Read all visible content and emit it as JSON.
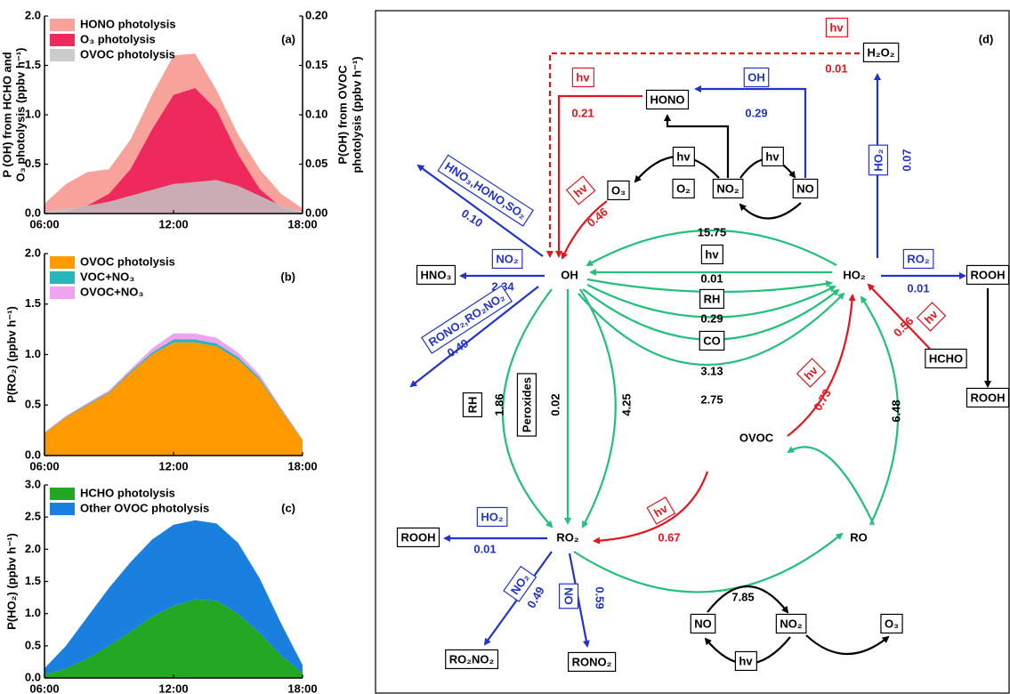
{
  "chart_data": [
    {
      "type": "area",
      "panel_label": "(a)",
      "stacked": false,
      "ylabel": [
        "P (OH) from HCHO and",
        "O₃ photolysis (ppbv h⁻¹)"
      ],
      "y2label": [
        "P(OH) from OVOC",
        "photolysis (ppbv h⁻¹)"
      ],
      "x": [
        6,
        7,
        8,
        9,
        10,
        11,
        12,
        13,
        14,
        15,
        16,
        17,
        18
      ],
      "xlim": [
        6,
        18
      ],
      "xticks": [
        {
          "value": 6,
          "label": "06:00"
        },
        {
          "value": 12,
          "label": "12:00"
        },
        {
          "value": 18,
          "label": "18:00"
        }
      ],
      "ylim": [
        0,
        2
      ],
      "yticks": [
        {
          "value": 0,
          "label": "0.0"
        },
        0.5,
        {
          "value": 1,
          "label": "1.0"
        },
        1.5,
        {
          "value": 2,
          "label": "2.0"
        }
      ],
      "y2lim": [
        0,
        0.2
      ],
      "y2ticks": [
        {
          "value": 0,
          "label": "0.00"
        },
        0.05,
        {
          "value": 0.1,
          "label": "0.10"
        },
        0.15,
        {
          "value": 0.2,
          "label": "0.20"
        }
      ],
      "series": [
        {
          "name": "HONO photolysis",
          "color": "#f7a39c",
          "values": [
            0.1,
            0.3,
            0.42,
            0.45,
            0.75,
            1.2,
            1.6,
            1.62,
            1.25,
            0.8,
            0.45,
            0.2,
            0.05
          ]
        },
        {
          "name": "O₃ photolysis",
          "color": "#ee2a5c",
          "values": [
            0,
            0.02,
            0.08,
            0.2,
            0.45,
            0.85,
            1.2,
            1.27,
            1.05,
            0.6,
            0.25,
            0.06,
            0
          ]
        },
        {
          "name": "OVOC photolysis",
          "color": "rgba(195,195,195,0.85)",
          "axis": "y2",
          "values": [
            0.002,
            0.005,
            0.008,
            0.012,
            0.018,
            0.024,
            0.03,
            0.032,
            0.034,
            0.028,
            0.018,
            0.008,
            0.002
          ]
        }
      ]
    },
    {
      "type": "area",
      "panel_label": "(b)",
      "stacked": true,
      "ylabel": [
        "P(RO₂) (ppbv h⁻¹)"
      ],
      "x": [
        6,
        7,
        8,
        9,
        10,
        11,
        12,
        13,
        14,
        15,
        16,
        17,
        18
      ],
      "xlim": [
        6,
        18
      ],
      "xticks": [
        {
          "value": 6,
          "label": "06:00"
        },
        {
          "value": 12,
          "label": "12:00"
        },
        {
          "value": 18,
          "label": "18:00"
        }
      ],
      "ylim": [
        0,
        2
      ],
      "yticks": [
        {
          "value": 0,
          "label": "0.0"
        },
        0.5,
        {
          "value": 1,
          "label": "1.0"
        },
        1.5,
        {
          "value": 2,
          "label": "2.0"
        }
      ],
      "series": [
        {
          "name": "OVOC photolysis",
          "color": "#ff9900",
          "values": [
            0.22,
            0.38,
            0.5,
            0.62,
            0.82,
            1.0,
            1.12,
            1.12,
            1.08,
            0.95,
            0.75,
            0.45,
            0.15
          ]
        },
        {
          "name": "VOC+NO₃",
          "color": "#2ab5b8",
          "values": [
            0.005,
            0.005,
            0.01,
            0.01,
            0.015,
            0.02,
            0.03,
            0.03,
            0.03,
            0.025,
            0.02,
            0.01,
            0.005
          ]
        },
        {
          "name": "OVOC+NO₃",
          "color": "#efa4ef",
          "values": [
            0.005,
            0.01,
            0.01,
            0.015,
            0.02,
            0.04,
            0.06,
            0.06,
            0.055,
            0.045,
            0.03,
            0.015,
            0.005
          ]
        }
      ]
    },
    {
      "type": "area",
      "panel_label": "(c)",
      "stacked": true,
      "ylabel": [
        "P(HO₂) (ppbv h⁻¹)"
      ],
      "x": [
        6,
        7,
        8,
        9,
        10,
        11,
        12,
        13,
        14,
        15,
        16,
        17,
        18
      ],
      "xlim": [
        6,
        18
      ],
      "xticks": [
        {
          "value": 6,
          "label": "06:00"
        },
        {
          "value": 12,
          "label": "12:00"
        },
        {
          "value": 18,
          "label": "18:00"
        }
      ],
      "ylim": [
        0,
        3
      ],
      "yticks": [
        {
          "value": 0,
          "label": "0.0"
        },
        0.5,
        {
          "value": 1,
          "label": "1.0"
        },
        1.5,
        {
          "value": 2,
          "label": "2.0"
        },
        2.5,
        {
          "value": 3,
          "label": "3.0"
        }
      ],
      "series": [
        {
          "name": "HCHO photolysis",
          "color": "#22a822",
          "values": [
            0.05,
            0.15,
            0.3,
            0.5,
            0.72,
            0.95,
            1.12,
            1.22,
            1.2,
            1.0,
            0.7,
            0.35,
            0.08
          ]
        },
        {
          "name": "Other OVOC photolysis",
          "color": "#1a80e0",
          "values": [
            0.1,
            0.35,
            0.65,
            0.9,
            1.08,
            1.2,
            1.26,
            1.23,
            1.2,
            1.1,
            0.85,
            0.5,
            0.12
          ]
        }
      ]
    }
  ],
  "diagram": {
    "panel_label": "(d)",
    "nodes": [
      "H₂O₂",
      "HONO",
      "O₃",
      "NO₂",
      "NO",
      "HNO₃",
      "OH",
      "HO₂",
      "ROOH",
      "HCHO",
      "ROOH",
      "OVOC",
      "ROOH",
      "RO₂",
      "RO",
      "RO₂NO₂",
      "RONO₂",
      "NO",
      "NO₂",
      "O₃"
    ],
    "labels": [
      "hv",
      "0.01",
      "hv",
      "0.21",
      "OH",
      "0.29",
      "hv",
      "O₂",
      "hv",
      "hv",
      "0.46",
      "HNO₃,HONO,SO₂",
      "0.10",
      "NO₂",
      "2.34",
      "RONO₂,RO₂NO₂",
      "0.49",
      "15.75",
      "hv",
      "0.01",
      "RH",
      "0.29",
      "CO",
      "3.13",
      "2.75",
      "HO₂",
      "0.07",
      "RO₂",
      "0.01",
      "hv",
      "0.56",
      "hv",
      "0.73",
      "RH",
      "1.86",
      "Peroxides",
      "0.02",
      "4.25",
      "6.48",
      "hv",
      "0.67",
      "HO₂",
      "0.01",
      "NO₂",
      "0.49",
      "NO",
      "0.59",
      "7.85",
      "hv"
    ]
  }
}
